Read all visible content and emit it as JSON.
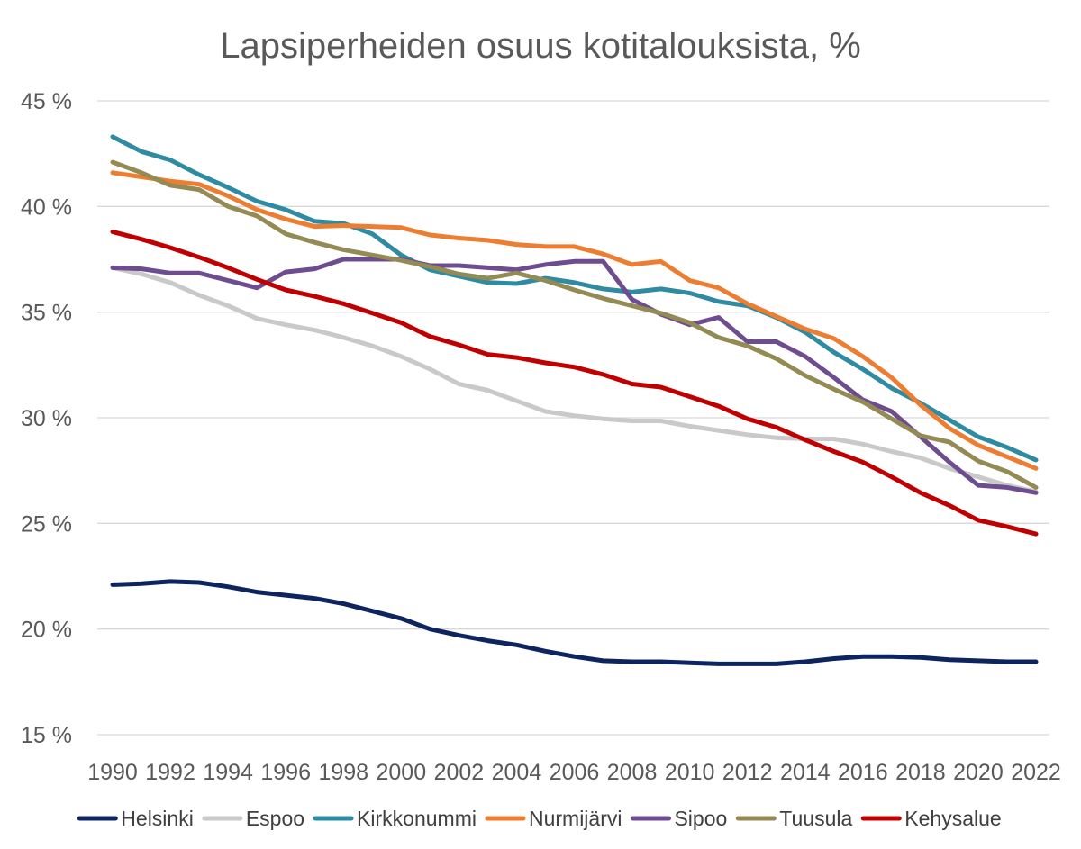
{
  "chart_data": {
    "type": "line",
    "title": "Lapsiperheiden osuus kotitalouksista, %",
    "xlabel": "",
    "ylabel": "",
    "ylim": [
      15,
      45
    ],
    "yticks": [
      15,
      20,
      25,
      30,
      35,
      40,
      45
    ],
    "ytick_labels": [
      "15 %",
      "20 %",
      "25 %",
      "30 %",
      "35 %",
      "40 %",
      "45 %"
    ],
    "x": [
      1990,
      1991,
      1992,
      1993,
      1994,
      1995,
      1996,
      1997,
      1998,
      1999,
      2000,
      2001,
      2002,
      2003,
      2004,
      2005,
      2006,
      2007,
      2008,
      2009,
      2010,
      2011,
      2012,
      2013,
      2014,
      2015,
      2016,
      2017,
      2018,
      2019,
      2020,
      2021,
      2022
    ],
    "xtick_labels": [
      "1990",
      "1992",
      "1994",
      "1996",
      "1998",
      "2000",
      "2002",
      "2004",
      "2006",
      "2008",
      "2010",
      "2012",
      "2014",
      "2016",
      "2018",
      "2020",
      "2022"
    ],
    "grid": "horizontal",
    "legend_position": "bottom",
    "series": [
      {
        "name": "Helsinki",
        "color": "#0e2461",
        "values": [
          22.1,
          22.15,
          22.25,
          22.2,
          22.0,
          21.75,
          21.6,
          21.45,
          21.2,
          20.85,
          20.5,
          20.0,
          19.7,
          19.45,
          19.25,
          18.95,
          18.7,
          18.5,
          18.45,
          18.45,
          18.4,
          18.35,
          18.35,
          18.35,
          18.45,
          18.6,
          18.7,
          18.7,
          18.65,
          18.55,
          18.5,
          18.45,
          18.45
        ]
      },
      {
        "name": "Espoo",
        "color": "#c9c9c9",
        "values": [
          37.1,
          36.8,
          36.4,
          35.8,
          35.3,
          34.7,
          34.4,
          34.15,
          33.8,
          33.4,
          32.9,
          32.3,
          31.6,
          31.3,
          30.8,
          30.3,
          30.1,
          29.95,
          29.85,
          29.85,
          29.6,
          29.4,
          29.2,
          29.05,
          29.0,
          29.0,
          28.75,
          28.4,
          28.1,
          27.6,
          27.2,
          26.8,
          26.5
        ]
      },
      {
        "name": "Kirkkonummi",
        "color": "#2e8ba1",
        "values": [
          43.3,
          42.6,
          42.2,
          41.5,
          40.9,
          40.25,
          39.85,
          39.3,
          39.2,
          38.7,
          37.7,
          37.0,
          36.7,
          36.4,
          36.35,
          36.6,
          36.4,
          36.1,
          35.95,
          36.1,
          35.9,
          35.5,
          35.3,
          34.75,
          34.05,
          33.1,
          32.3,
          31.4,
          30.7,
          29.9,
          29.1,
          28.6,
          28.0
        ]
      },
      {
        "name": "Nurmijärvi",
        "color": "#ed7d31",
        "values": [
          41.6,
          41.4,
          41.2,
          41.05,
          40.5,
          39.85,
          39.4,
          39.05,
          39.1,
          39.05,
          39.0,
          38.65,
          38.5,
          38.4,
          38.2,
          38.1,
          38.1,
          37.75,
          37.25,
          37.4,
          36.5,
          36.15,
          35.4,
          34.8,
          34.2,
          33.75,
          32.9,
          31.9,
          30.6,
          29.5,
          28.7,
          28.15,
          27.6
        ]
      },
      {
        "name": "Sipoo",
        "color": "#6d4c8f",
        "values": [
          37.1,
          37.05,
          36.85,
          36.85,
          36.5,
          36.15,
          36.9,
          37.05,
          37.5,
          37.5,
          37.5,
          37.2,
          37.2,
          37.1,
          37.0,
          37.25,
          37.4,
          37.4,
          35.6,
          34.9,
          34.4,
          34.75,
          33.6,
          33.6,
          32.9,
          31.9,
          30.85,
          30.3,
          29.1,
          27.9,
          26.8,
          26.7,
          26.45
        ]
      },
      {
        "name": "Tuusula",
        "color": "#948a54",
        "values": [
          42.1,
          41.6,
          41.0,
          40.8,
          40.0,
          39.55,
          38.7,
          38.3,
          37.95,
          37.7,
          37.45,
          37.15,
          36.8,
          36.6,
          36.85,
          36.5,
          36.05,
          35.65,
          35.3,
          34.95,
          34.5,
          33.8,
          33.4,
          32.8,
          32.0,
          31.35,
          30.75,
          29.95,
          29.15,
          28.85,
          27.95,
          27.45,
          26.7
        ]
      },
      {
        "name": "Kehysalue",
        "color": "#c00000",
        "values": [
          38.8,
          38.45,
          38.05,
          37.6,
          37.1,
          36.55,
          36.05,
          35.75,
          35.4,
          34.95,
          34.5,
          33.85,
          33.45,
          33.0,
          32.85,
          32.6,
          32.4,
          32.05,
          31.6,
          31.45,
          31.0,
          30.55,
          29.95,
          29.55,
          28.95,
          28.4,
          27.9,
          27.2,
          26.45,
          25.85,
          25.15,
          24.85,
          24.5
        ]
      }
    ]
  }
}
